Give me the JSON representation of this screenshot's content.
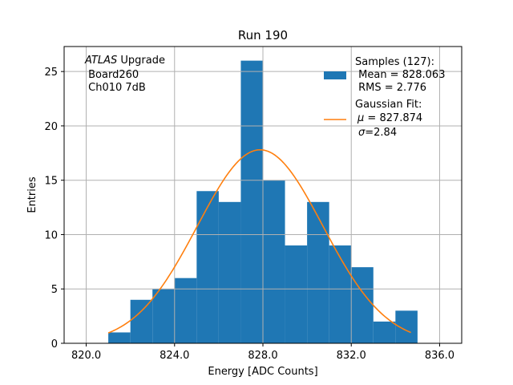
{
  "chart_data": {
    "type": "bar",
    "title": "Run 190",
    "xlabel": "Energy [ADC Counts]",
    "ylabel": "Entries",
    "xlim": [
      819.0,
      837.0
    ],
    "ylim": [
      0,
      27.3
    ],
    "grid": true,
    "xticks": [
      820,
      824,
      828,
      832,
      836
    ],
    "xtick_labels": [
      "820.0",
      "824.0",
      "828.0",
      "832.0",
      "836.0"
    ],
    "yticks": [
      0,
      5,
      10,
      15,
      20,
      25
    ],
    "ytick_labels": [
      "0",
      "5",
      "10",
      "15",
      "20",
      "25"
    ],
    "bin_edges": [
      821,
      822,
      823,
      824,
      825,
      826,
      827,
      828,
      829,
      830,
      831,
      832,
      833,
      834,
      835
    ],
    "values": [
      1,
      4,
      5,
      6,
      14,
      13,
      26,
      15,
      9,
      13,
      9,
      7,
      2,
      3
    ],
    "bar_color": "#1f77b4",
    "fit": {
      "name": "Gaussian Fit",
      "mu": 827.874,
      "sigma": 2.84,
      "amplitude": 17.8,
      "x_range": [
        821.0,
        834.7
      ],
      "color": "#ff7f0e"
    },
    "annotation": {
      "experiment": "ATLAS",
      "experiment_suffix": " Upgrade",
      "board": " Board260",
      "channel": " Ch010 7dB"
    },
    "legend": {
      "position": "top-right",
      "samples_title": "Samples (127):",
      "samples_mean": " Mean = 828.063",
      "samples_rms": " RMS = 2.776",
      "fit_title": "Gaussian Fit:",
      "fit_mu_symbol": "μ",
      "fit_mu_value": " = 827.874",
      "fit_sigma_symbol": "σ",
      "fit_sigma_value": "=2.84"
    }
  }
}
